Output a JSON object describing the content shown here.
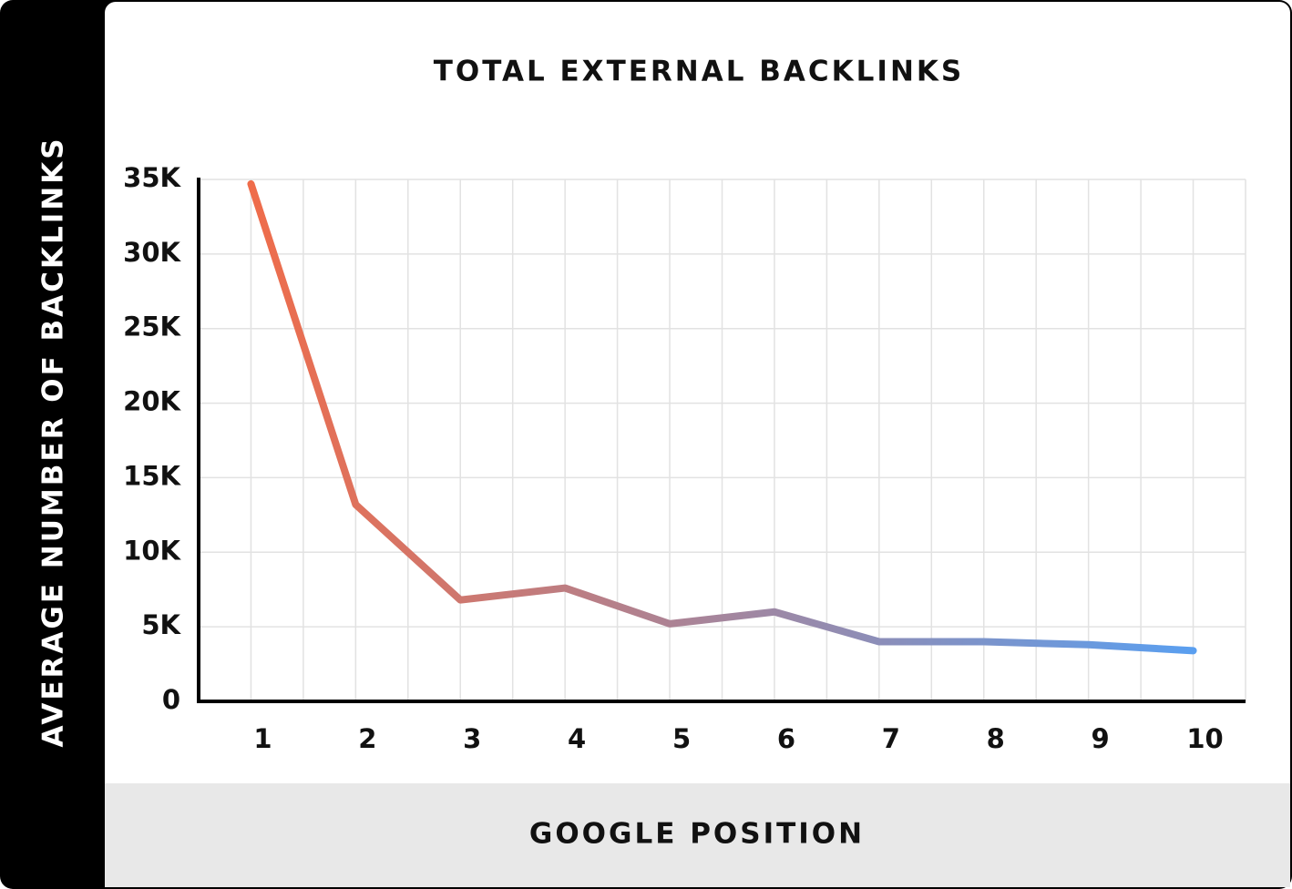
{
  "chart_data": {
    "type": "line",
    "title": "TOTAL EXTERNAL BACKLINKS",
    "x_label": "GOOGLE POSITION",
    "y_label": "AVERAGE NUMBER OF BACKLINKS",
    "categories": [
      "1",
      "2",
      "3",
      "4",
      "5",
      "6",
      "7",
      "8",
      "9",
      "10"
    ],
    "values": [
      34700,
      13200,
      6800,
      7600,
      5200,
      6000,
      4000,
      4000,
      3800,
      3400
    ],
    "color": [
      "#ef6c4a",
      "#5a9ff0"
    ],
    "ylim": [
      0,
      35000
    ],
    "yticks": [
      0,
      {
        "value": 5000,
        "label": "5K"
      },
      {
        "value": 10000,
        "label": "10K"
      },
      {
        "value": 15000,
        "label": "15K"
      },
      {
        "value": 20000,
        "label": "20K"
      },
      {
        "value": 25000,
        "label": "25K"
      },
      {
        "value": 30000,
        "label": "30K"
      },
      {
        "value": 35000,
        "label": "35K"
      }
    ],
    "grid": true
  }
}
